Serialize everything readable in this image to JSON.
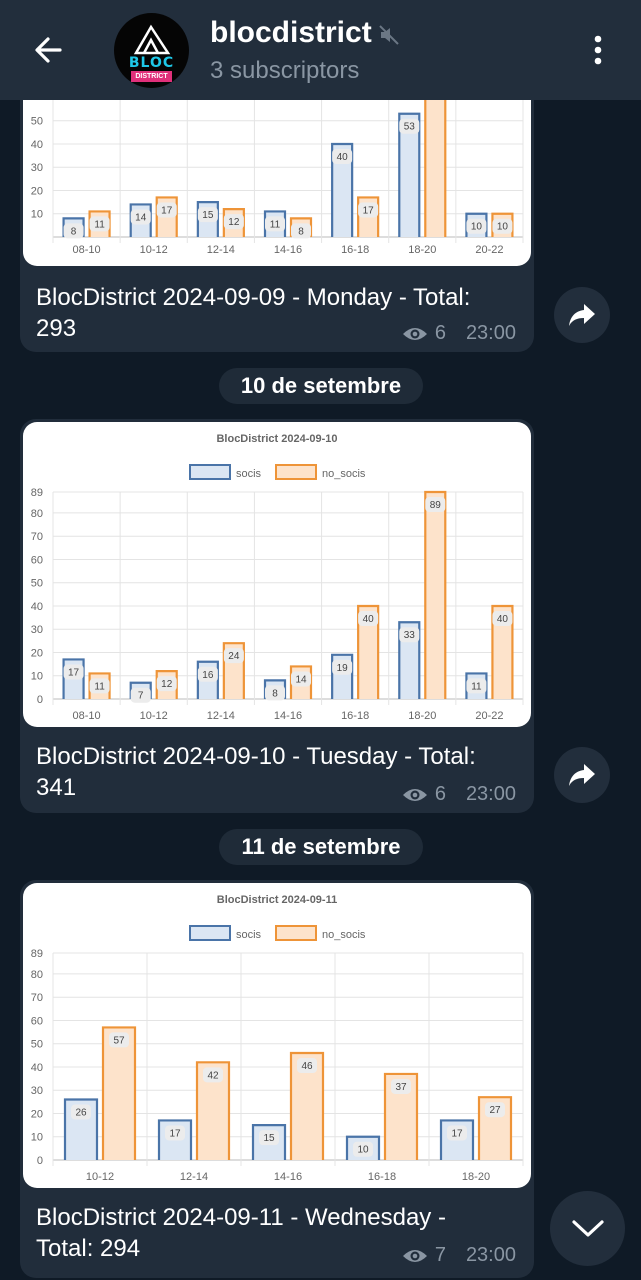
{
  "header": {
    "title": "blocdistrict",
    "subtitle": "3 subscriptors",
    "avatar_text": "BLOC",
    "avatar_sub": "DISTRICT"
  },
  "messages": [
    {
      "caption_line1": "BlocDistrict 2024-09-09 - Monday - Total:",
      "caption_line2": "293",
      "views": "6",
      "time": "23:00"
    },
    {
      "date_separator": "10 de setembre",
      "caption_line1": "BlocDistrict 2024-09-10 - Tuesday - Total:",
      "caption_line2": "341",
      "views": "6",
      "time": "23:00"
    },
    {
      "date_separator": "11 de setembre",
      "caption_line1": "BlocDistrict 2024-09-11 - Wednesday -",
      "caption_line2": "Total: 294",
      "views": "7",
      "time": "23:00"
    }
  ],
  "colors": {
    "socis_fill": "#dbe6f3",
    "socis_stroke": "#4a74a8",
    "no_socis_fill": "#fde3cb",
    "no_socis_stroke": "#ee9438"
  },
  "chart_data": [
    {
      "type": "bar",
      "title": "",
      "categories": [
        "08-10",
        "10-12",
        "12-14",
        "14-16",
        "16-18",
        "18-20",
        "20-22"
      ],
      "series": [
        {
          "name": "socis",
          "values": [
            8,
            14,
            15,
            11,
            40,
            53,
            10
          ]
        },
        {
          "name": "no_socis",
          "values": [
            11,
            17,
            12,
            8,
            17,
            89,
            10
          ]
        }
      ],
      "ylim": [
        0,
        89
      ],
      "yticks": [
        "10",
        "20",
        "30",
        "40",
        "50"
      ],
      "partial_view": true
    },
    {
      "type": "bar",
      "title": "BlocDistrict 2024-09-10",
      "legend": [
        "socis",
        "no_socis"
      ],
      "legend_position": "top",
      "categories": [
        "08-10",
        "10-12",
        "12-14",
        "14-16",
        "16-18",
        "18-20",
        "20-22"
      ],
      "series": [
        {
          "name": "socis",
          "values": [
            17,
            7,
            16,
            8,
            19,
            33,
            11
          ]
        },
        {
          "name": "no_socis",
          "values": [
            11,
            12,
            24,
            14,
            40,
            89,
            40
          ]
        }
      ],
      "ylim": [
        0,
        89
      ],
      "yticks": [
        "0",
        "10",
        "20",
        "30",
        "40",
        "50",
        "60",
        "70",
        "80",
        "89"
      ]
    },
    {
      "type": "bar",
      "title": "BlocDistrict 2024-09-11",
      "legend": [
        "socis",
        "no_socis"
      ],
      "legend_position": "top",
      "categories": [
        "10-12",
        "12-14",
        "14-16",
        "16-18",
        "18-20"
      ],
      "series": [
        {
          "name": "socis",
          "values": [
            26,
            17,
            15,
            10,
            17
          ]
        },
        {
          "name": "no_socis",
          "values": [
            57,
            42,
            46,
            37,
            27
          ]
        }
      ],
      "ylim": [
        0,
        89
      ],
      "yticks": [
        "0",
        "10",
        "20",
        "30",
        "40",
        "50",
        "60",
        "70",
        "80",
        "89"
      ]
    }
  ]
}
